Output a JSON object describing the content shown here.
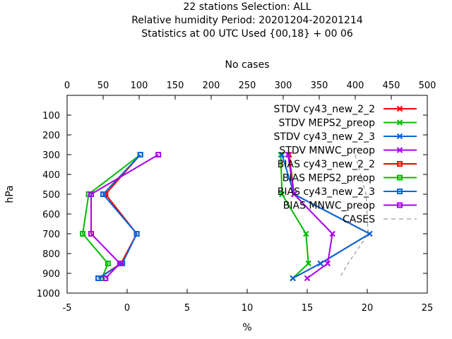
{
  "chart_data": {
    "type": "line",
    "title_lines": [
      "22 stations Selection: ALL",
      "Relative humidity  Period: 20201204-20201214",
      "Statistics at 00 UTC  Used {00,18} + 00 06"
    ],
    "xlabel": "%",
    "ylabel": "hPa",
    "x2label": "No cases",
    "xlim": [
      -5,
      25
    ],
    "ylim": [
      1000,
      0
    ],
    "x2lim": [
      0,
      500
    ],
    "x_ticks": [
      -5,
      0,
      5,
      10,
      15,
      20,
      25
    ],
    "y_ticks": [
      100,
      200,
      300,
      400,
      500,
      600,
      700,
      800,
      900,
      1000
    ],
    "x2_ticks": [
      0,
      50,
      100,
      150,
      200,
      250,
      300,
      350,
      400,
      450,
      500
    ],
    "levels": [
      300,
      500,
      700,
      850,
      925
    ],
    "legend_position": "top-right",
    "series": [
      {
        "name": "STDV cy43_new_2_2",
        "color": "#ff0000",
        "marker": "x",
        "values": [
          13.5,
          13.9,
          20.2,
          16.1,
          13.8
        ]
      },
      {
        "name": "STDV MEPS2_preop",
        "color": "#00bb00",
        "marker": "x",
        "values": [
          12.8,
          12.9,
          14.9,
          15.1,
          13.8
        ]
      },
      {
        "name": "STDV cy43_new_2_3",
        "color": "#0066dd",
        "marker": "x",
        "values": [
          12.9,
          13.9,
          20.2,
          16.1,
          13.8
        ]
      },
      {
        "name": "STDV MNWC_preop",
        "color": "#aa00ee",
        "marker": "x",
        "values": [
          13.4,
          13.9,
          17.1,
          16.7,
          15.0
        ]
      },
      {
        "name": "BIAS cy43_new_2_2",
        "color": "#ff0000",
        "marker": "square",
        "values": [
          1.1,
          -1.8,
          0.8,
          -0.5,
          -2.4
        ]
      },
      {
        "name": "BIAS MEPS2_preop",
        "color": "#00bb00",
        "marker": "square",
        "values": [
          1.1,
          -3.2,
          -3.7,
          -1.6,
          -2.1
        ]
      },
      {
        "name": "BIAS cy43_new_2_3",
        "color": "#0066dd",
        "marker": "square",
        "values": [
          1.1,
          -2.0,
          0.8,
          -0.4,
          -2.4
        ]
      },
      {
        "name": "BIAS MNWC_preop",
        "color": "#aa00ee",
        "marker": "square",
        "values": [
          2.6,
          -3.0,
          -3.0,
          -0.6,
          -1.8
        ]
      },
      {
        "name": "CASES",
        "color": "#808080",
        "marker": "none",
        "dashed": true,
        "axis": "x2",
        "levels": [
          300,
          500,
          700,
          850,
          925
        ],
        "values": [
          400,
          415,
          418,
          390,
          378
        ]
      }
    ]
  }
}
